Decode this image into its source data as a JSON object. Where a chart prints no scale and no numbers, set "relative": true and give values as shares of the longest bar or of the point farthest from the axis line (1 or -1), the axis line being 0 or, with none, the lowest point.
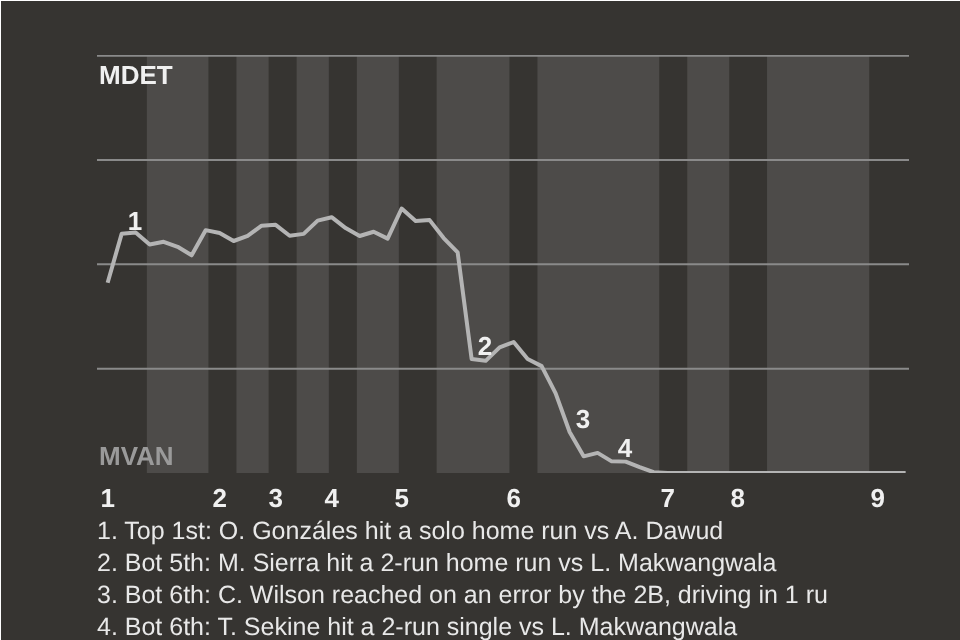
{
  "chart_data": {
    "type": "line",
    "relative": true,
    "categories": [
      "1",
      null,
      null,
      null,
      null,
      null,
      null,
      null,
      "2",
      null,
      null,
      null,
      "3",
      null,
      null,
      null,
      "4",
      null,
      null,
      null,
      null,
      "5",
      null,
      null,
      null,
      null,
      null,
      null,
      null,
      "6",
      null,
      null,
      null,
      null,
      null,
      null,
      null,
      null,
      null,
      null,
      "7",
      null,
      null,
      null,
      null,
      "8",
      null,
      null,
      null,
      null,
      null,
      null,
      null,
      null,
      null,
      "9",
      null,
      null
    ],
    "grid": false,
    "marker": "none",
    "line_style": "solid",
    "ref_lines": [
      {
        "axis": "y",
        "value": 0.394,
        "color": "#8a8a8a"
      },
      {
        "axis": "y",
        "value": 0.789,
        "color": "#8a8a8a"
      },
      {
        "axis": "y",
        "value": 1.183,
        "color": "#8a8a8a"
      },
      {
        "axis": "y",
        "value": 1.577,
        "color": "#8a8a8a"
      }
    ],
    "series": [
      {
        "color": "#b4b4b4",
        "values": [
          0.719,
          0.904,
          0.909,
          0.864,
          0.874,
          0.855,
          0.823,
          0.918,
          0.907,
          0.877,
          0.896,
          0.935,
          0.938,
          0.897,
          0.904,
          0.954,
          0.967,
          0.926,
          0.896,
          0.912,
          0.886,
          1,
          0.953,
          0.956,
          0.888,
          0.834,
          0.431,
          0.424,
          0.475,
          0.495,
          0.431,
          0.404,
          0.301,
          0.155,
          0.063,
          0.076,
          0.044,
          0.043,
          0.022,
          0.003,
          0,
          0,
          0,
          0,
          0,
          0,
          0,
          0,
          0,
          0,
          0,
          0,
          0,
          0,
          0,
          0,
          0,
          0
        ]
      }
    ],
    "annotations": [
      "MDET",
      "MVAN",
      {
        "text": "1",
        "y": 0.904
      },
      {
        "text": "2",
        "y": 0.431
      },
      {
        "text": "3",
        "y": 0.155
      },
      {
        "text": "4",
        "y": 0.044
      },
      "1. Top 1st: O. Gonzáles hit a solo home run vs A. Dawud",
      "2. Bot 5th: M. Sierra hit a 2-run home run vs L. Makwangwala",
      "3. Bot 6th: C. Wilson reached on an error by the 2B, driving in 1 ru",
      "4. Bot 6th: T. Sekine hit a 2-run single vs L. Makwangwala"
    ]
  }
}
